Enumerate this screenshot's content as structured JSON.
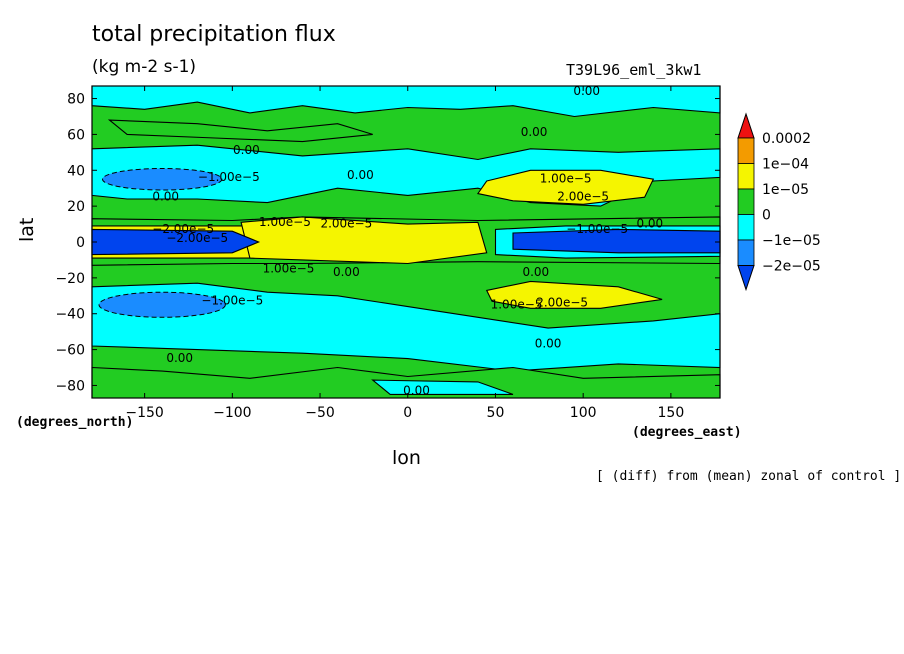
{
  "chart_data": {
    "type": "heatmap",
    "title": "total precipitation flux",
    "subtitle": "(kg m-2 s-1)",
    "run_name": "T39L96_eml_3kw1",
    "xlabel": "lon",
    "ylabel": "lat",
    "xunit": "(degrees_east)",
    "yunit": "(degrees_north)",
    "footnote": "[ (diff) from (mean) zonal of control ]",
    "xlim": [
      -180,
      178
    ],
    "ylim": [
      -87,
      87
    ],
    "xticks": [
      -150,
      -100,
      -50,
      0,
      50,
      100,
      150
    ],
    "yticks": [
      -80,
      -60,
      -40,
      -20,
      0,
      20,
      40,
      60,
      80
    ],
    "x_tick_labels": [
      "−150",
      "−100",
      "−50",
      "0",
      "50",
      "100",
      "150"
    ],
    "y_tick_labels": [
      "−80",
      "−60",
      "−40",
      "−20",
      "0",
      "20",
      "40",
      "60",
      "80"
    ],
    "colorbar": {
      "labels": [
        "0.0002",
        "1e−04",
        "1e−05",
        "0",
        "−1e−05",
        "−2e−05"
      ],
      "colors": [
        "#ee1111",
        "#f39b00",
        "#f5f500",
        "#22cc22",
        "#00ffff",
        "#1a8cff",
        "#0044ee"
      ]
    },
    "contour_labels": [
      {
        "text": "0.00",
        "lon": 102,
        "lat": 84
      },
      {
        "text": "0.00",
        "lon": 72,
        "lat": 61
      },
      {
        "text": "0.00",
        "lon": -92,
        "lat": 51
      },
      {
        "text": "0.00",
        "lon": -27,
        "lat": 37
      },
      {
        "text": "−1.00e−5",
        "lon": -102,
        "lat": 36
      },
      {
        "text": "1.00e−5",
        "lon": 90,
        "lat": 35
      },
      {
        "text": "0.00",
        "lon": -138,
        "lat": 25
      },
      {
        "text": "2.00e−5",
        "lon": 100,
        "lat": 25
      },
      {
        "text": "1.00e−5",
        "lon": -70,
        "lat": 11
      },
      {
        "text": "2.00e−5",
        "lon": -35,
        "lat": 10
      },
      {
        "text": "−2.00e−5",
        "lon": -128,
        "lat": 7
      },
      {
        "text": "−1.00e−5",
        "lon": 108,
        "lat": 7
      },
      {
        "text": "0.00",
        "lon": 138,
        "lat": 10
      },
      {
        "text": "−2.00e−5",
        "lon": -120,
        "lat": 2
      },
      {
        "text": "1.00e−5",
        "lon": -68,
        "lat": -15
      },
      {
        "text": "0.00",
        "lon": -35,
        "lat": -17
      },
      {
        "text": "0.00",
        "lon": 73,
        "lat": -17
      },
      {
        "text": "−1.00e−5",
        "lon": -100,
        "lat": -33
      },
      {
        "text": "1.00e−5",
        "lon": 62,
        "lat": -35
      },
      {
        "text": "2.00e−5",
        "lon": 88,
        "lat": -34
      },
      {
        "text": "0.00",
        "lon": 80,
        "lat": -57
      },
      {
        "text": "0.00",
        "lon": -130,
        "lat": -65
      },
      {
        "text": "0.00",
        "lon": 5,
        "lat": -83
      }
    ]
  }
}
